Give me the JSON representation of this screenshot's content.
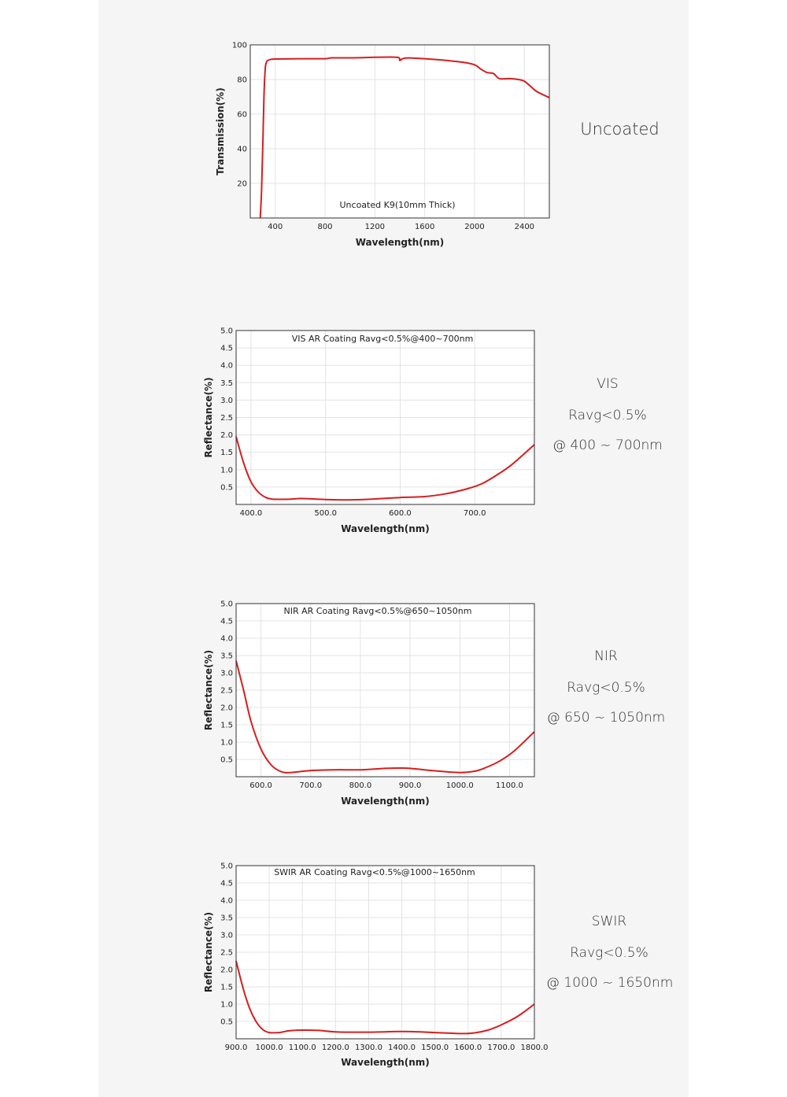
{
  "colors": {
    "curve": "#d61e1e",
    "grid": "#e3e3e3",
    "frame": "#333333",
    "panel": "#f5f5f5",
    "text": "#222222"
  },
  "side_labels": {
    "uncoated": "Uncoated",
    "vis": [
      "VIS",
      "Ravg<0.5%",
      "@ 400 ~ 700nm"
    ],
    "nir": [
      "NIR",
      "Ravg<0.5%",
      "@ 650 ~ 1050nm"
    ],
    "swir": [
      "SWIR",
      "Ravg<0.5%",
      "@ 1000 ~ 1650nm"
    ]
  },
  "chart_data": [
    {
      "id": "uncoated",
      "type": "line",
      "title": "Uncoated K9(10mm Thick)",
      "xlabel": "Wavelength(nm)",
      "ylabel": "Transmission(%)",
      "xlim": [
        200,
        2600
      ],
      "ylim": [
        0,
        100
      ],
      "xticks": [
        400,
        800,
        1200,
        1600,
        2000,
        2400
      ],
      "yticks": [
        20,
        40,
        60,
        80,
        100
      ],
      "grid": true,
      "series": [
        {
          "x": [
            280,
            290,
            300,
            310,
            320,
            330,
            340,
            360,
            400,
            600,
            800,
            850,
            1000,
            1200,
            1380,
            1400,
            1430,
            1500,
            1700,
            1900,
            2000,
            2050,
            2100,
            2150,
            2200,
            2280,
            2350,
            2400,
            2450,
            2500,
            2600
          ],
          "y": [
            0,
            15,
            40,
            70,
            86,
            90,
            91,
            91.5,
            91.8,
            92,
            92,
            92.5,
            92.5,
            92.8,
            92.8,
            91,
            92.2,
            92.4,
            91.5,
            90,
            88.5,
            86,
            84,
            83.5,
            80.5,
            80.5,
            80,
            79,
            76,
            73,
            69.5
          ]
        }
      ]
    },
    {
      "id": "vis",
      "type": "line",
      "title": "VIS AR Coating Ravg<0.5%@400~700nm",
      "xlabel": "Wavelength(nm)",
      "ylabel": "Reflectance(%)",
      "xlim": [
        380,
        780
      ],
      "ylim": [
        0,
        5
      ],
      "xticks": [
        400,
        500,
        600,
        700
      ],
      "yticks": [
        0.5,
        1.0,
        1.5,
        2.0,
        2.5,
        3.0,
        3.5,
        4.0,
        4.5,
        5.0
      ],
      "grid": true,
      "series": [
        {
          "x": [
            380,
            390,
            400,
            410,
            420,
            430,
            450,
            470,
            500,
            530,
            560,
            600,
            630,
            660,
            690,
            710,
            730,
            750,
            780
          ],
          "y": [
            1.95,
            1.2,
            0.65,
            0.35,
            0.2,
            0.15,
            0.15,
            0.17,
            0.14,
            0.13,
            0.15,
            0.2,
            0.22,
            0.3,
            0.45,
            0.6,
            0.85,
            1.15,
            1.72
          ]
        }
      ]
    },
    {
      "id": "nir",
      "type": "line",
      "title": "NIR AR Coating Ravg<0.5%@650~1050nm",
      "xlabel": "Wavelength(nm)",
      "ylabel": "Reflectance(%)",
      "xlim": [
        550,
        1150
      ],
      "ylim": [
        0,
        5
      ],
      "xticks": [
        600,
        700,
        800,
        900,
        1000,
        1100
      ],
      "yticks": [
        0.5,
        1.0,
        1.5,
        2.0,
        2.5,
        3.0,
        3.5,
        4.0,
        4.5,
        5.0
      ],
      "grid": true,
      "series": [
        {
          "x": [
            550,
            565,
            580,
            600,
            620,
            640,
            660,
            700,
            750,
            800,
            850,
            880,
            900,
            950,
            1000,
            1030,
            1050,
            1080,
            1110,
            1150
          ],
          "y": [
            3.35,
            2.5,
            1.6,
            0.8,
            0.35,
            0.15,
            0.12,
            0.18,
            0.2,
            0.2,
            0.24,
            0.25,
            0.24,
            0.17,
            0.12,
            0.16,
            0.25,
            0.45,
            0.75,
            1.3
          ]
        }
      ]
    },
    {
      "id": "swir",
      "type": "line",
      "title": "SWIR AR Coating Ravg<0.5%@1000~1650nm",
      "xlabel": "Wavelength(nm)",
      "ylabel": "Reflectance(%)",
      "xlim": [
        900,
        1800
      ],
      "ylim": [
        0,
        5
      ],
      "xticks": [
        900,
        1000,
        1100,
        1200,
        1300,
        1400,
        1500,
        1600,
        1700,
        1800
      ],
      "yticks": [
        0.5,
        1.0,
        1.5,
        2.0,
        2.5,
        3.0,
        3.5,
        4.0,
        4.5,
        5.0
      ],
      "grid": true,
      "series": [
        {
          "x": [
            900,
            920,
            940,
            960,
            980,
            1000,
            1030,
            1060,
            1100,
            1150,
            1200,
            1300,
            1400,
            1500,
            1580,
            1620,
            1660,
            1700,
            1750,
            1800
          ],
          "y": [
            2.25,
            1.5,
            0.9,
            0.5,
            0.27,
            0.18,
            0.18,
            0.23,
            0.25,
            0.24,
            0.2,
            0.19,
            0.21,
            0.18,
            0.15,
            0.17,
            0.25,
            0.4,
            0.65,
            1.0
          ]
        }
      ]
    }
  ]
}
